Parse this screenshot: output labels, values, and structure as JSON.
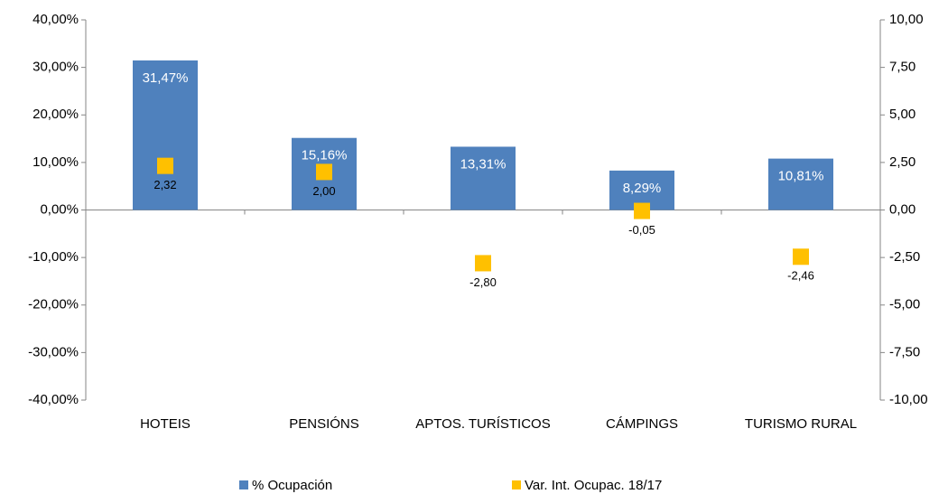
{
  "chart_data": {
    "type": "bar",
    "categories": [
      "HOTEIS",
      "PENSIÓNS",
      "APTOS. TURÍSTICOS",
      "CÁMPINGS",
      "TURISMO RURAL"
    ],
    "series": [
      {
        "name": "% Ocupación",
        "type": "bar",
        "color": "#4f81bd",
        "axis": "y",
        "values": [
          31.47,
          15.16,
          13.31,
          8.29,
          10.81
        ],
        "value_labels": [
          "31,47%",
          "15,16%",
          "13,31%",
          "8,29%",
          "10,81%"
        ]
      },
      {
        "name": "Var. Int. Ocupac. 18/17",
        "type": "marker",
        "color": "#ffc000",
        "axis": "y2",
        "values": [
          2.32,
          2.0,
          -2.8,
          -0.05,
          -2.46
        ],
        "value_labels": [
          "2,32",
          "2,00",
          "-2,80",
          "-0,05",
          "-2,46"
        ]
      }
    ],
    "ylim": [
      -40,
      40
    ],
    "yticks": [
      {
        "value": 40,
        "label": "40,00%"
      },
      {
        "value": 30,
        "label": "30,00%"
      },
      {
        "value": 20,
        "label": "20,00%"
      },
      {
        "value": 10,
        "label": "10,00%"
      },
      {
        "value": 0,
        "label": "0,00%"
      },
      {
        "value": -10,
        "label": "-10,00%"
      },
      {
        "value": -20,
        "label": "-20,00%"
      },
      {
        "value": -30,
        "label": "-30,00%"
      },
      {
        "value": -40,
        "label": "-40,00%"
      }
    ],
    "y2lim": [
      -10,
      10
    ],
    "y2ticks": [
      {
        "value": 10,
        "label": "10,00"
      },
      {
        "value": 7.5,
        "label": "7,50"
      },
      {
        "value": 5,
        "label": "5,00"
      },
      {
        "value": 2.5,
        "label": "2,50"
      },
      {
        "value": 0,
        "label": "0,00"
      },
      {
        "value": -2.5,
        "label": "-2,50"
      },
      {
        "value": -5,
        "label": "-5,00"
      },
      {
        "value": -7.5,
        "label": "-7,50"
      },
      {
        "value": -10,
        "label": "-10,00"
      }
    ],
    "grid": false,
    "legend": "bottom"
  }
}
